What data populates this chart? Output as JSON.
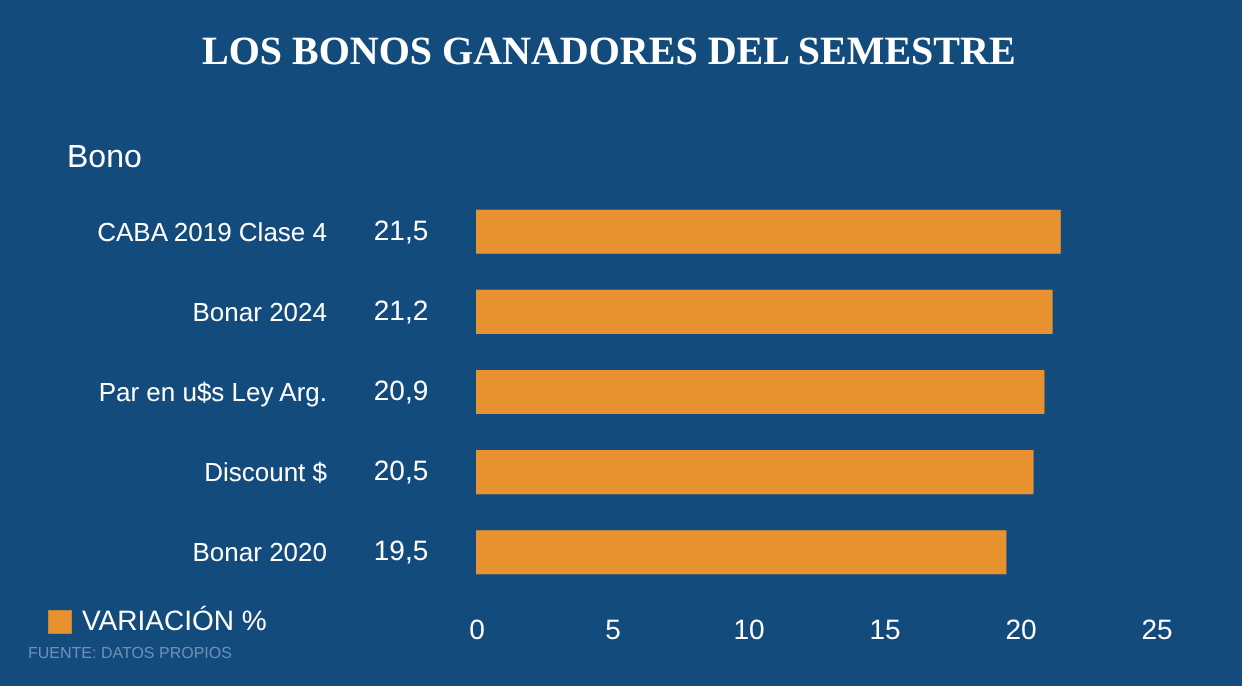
{
  "chart_data": {
    "type": "bar",
    "orientation": "horizontal",
    "title": "LOS BONOS GANADORES DEL SEMESTRE",
    "ylabel": "Bono",
    "categories": [
      "CABA 2019 Clase 4",
      "Bonar 2024",
      "Par en u$s Ley Arg.",
      "Discount $",
      "Bonar 2020"
    ],
    "series": [
      {
        "name": "VARIACIÓN %",
        "color": "#e8922f",
        "values": [
          21.5,
          21.2,
          20.9,
          20.5,
          19.5
        ]
      }
    ],
    "value_labels": [
      "21,5",
      "21,2",
      "20,9",
      "20,5",
      "19,5"
    ],
    "xlim": [
      0,
      25
    ],
    "xticks": [
      0,
      5,
      10,
      15,
      20,
      25
    ],
    "grid": false,
    "legend": "bottom left",
    "annotations": [
      "FUENTE: DATOS PROPIOS"
    ]
  }
}
